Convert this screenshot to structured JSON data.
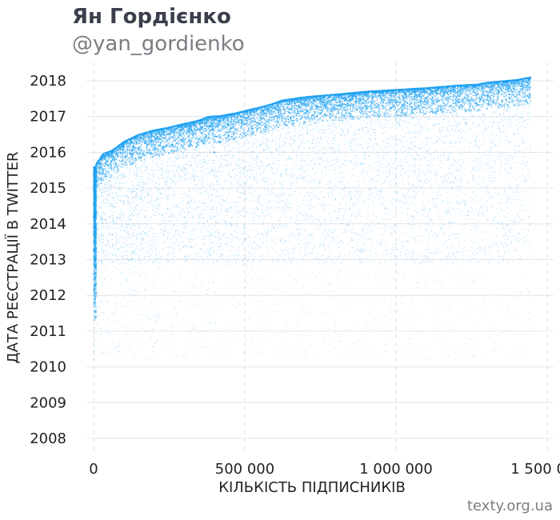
{
  "header": {
    "title": "Ян Гордієнко",
    "subtitle": "@yan_gordienko"
  },
  "source": "texty.org.ua",
  "chart_data": {
    "type": "scatter",
    "title": "Ян Гордієнко",
    "subtitle": "@yan_gordienko",
    "xlabel": "КІЛЬКІСТЬ ПІДПИСНИКІВ",
    "ylabel": "ДАТА РЕЄСТРАЦІЇ В TWITTER",
    "xlim": [
      -50000,
      1530000
    ],
    "ylim": [
      2007.55,
      2018.45
    ],
    "x_ticks": [
      0,
      500000,
      1000000,
      1500000
    ],
    "x_tick_labels": [
      "0",
      "500 000",
      "1 000 000",
      "1 500 000"
    ],
    "y_ticks": [
      2008,
      2009,
      2010,
      2011,
      2012,
      2013,
      2014,
      2015,
      2016,
      2017,
      2018
    ],
    "y_tick_labels": [
      "2008",
      "2009",
      "2010",
      "2011",
      "2012",
      "2013",
      "2014",
      "2015",
      "2016",
      "2017",
      "2018"
    ],
    "grid": true,
    "point_color": "#1da1f2",
    "frontier": {
      "description": "upper edge of the point cloud: latest registration date by follower index",
      "x": [
        0,
        10000,
        30000,
        60000,
        100000,
        150000,
        200000,
        250000,
        300000,
        350000,
        380000,
        420000,
        470000,
        520000,
        560000,
        600000,
        620000,
        700000,
        800000,
        900000,
        1000000,
        1100000,
        1200000,
        1270000,
        1300000,
        1400000,
        1445000
      ],
      "y": [
        2015.45,
        2015.7,
        2015.95,
        2016.05,
        2016.3,
        2016.5,
        2016.62,
        2016.7,
        2016.8,
        2016.9,
        2017.0,
        2017.02,
        2017.1,
        2017.2,
        2017.28,
        2017.38,
        2017.45,
        2017.55,
        2017.62,
        2017.7,
        2017.75,
        2017.8,
        2017.87,
        2017.9,
        2017.95,
        2018.03,
        2018.1
      ]
    },
    "series": [
      {
        "x": [
          10000,
          40000,
          80000,
          150000,
          260000,
          380000,
          400000,
          550000,
          700000,
          900000,
          1100000,
          1300000,
          1440000
        ],
        "y": [
          2015.2,
          2015.7,
          2015.9,
          2016.1,
          2016.2,
          2016.4,
          2016.0,
          2016.8,
          2017.1,
          2017.3,
          2017.5,
          2017.7,
          2018.0
        ]
      }
    ]
  }
}
